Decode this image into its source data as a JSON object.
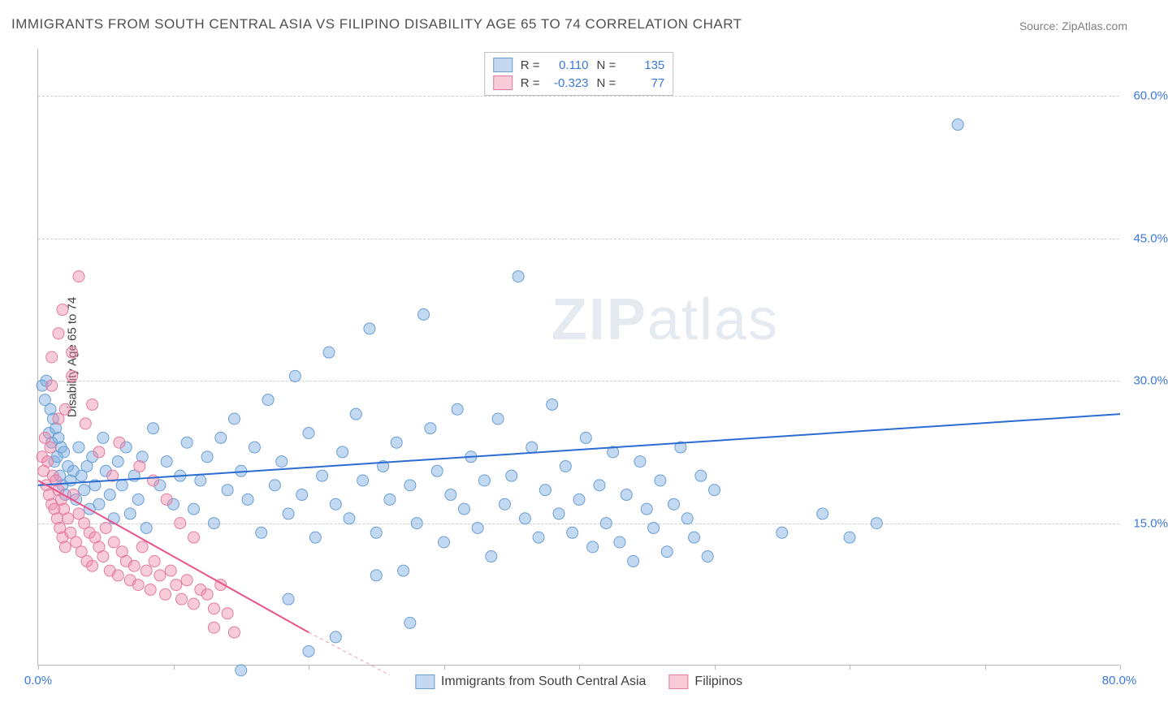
{
  "title": "IMMIGRANTS FROM SOUTH CENTRAL ASIA VS FILIPINO DISABILITY AGE 65 TO 74 CORRELATION CHART",
  "source": "Source: ZipAtlas.com",
  "watermark_prefix": "ZIP",
  "watermark_suffix": "atlas",
  "yaxis_title": "Disability Age 65 to 74",
  "chart": {
    "type": "scatter",
    "xlim": [
      0,
      80
    ],
    "ylim": [
      0,
      65
    ],
    "ytick_values": [
      15,
      30,
      45,
      60
    ],
    "ytick_labels": [
      "15.0%",
      "30.0%",
      "45.0%",
      "60.0%"
    ],
    "xtick_values": [
      0,
      10,
      20,
      30,
      40,
      50,
      60,
      70,
      80
    ],
    "x_origin_label": "0.0%",
    "x_max_label": "80.0%",
    "grid_color": "#d0d0d0",
    "axis_color": "#b8b8b8",
    "axis_label_color_blue": "#3b78d8",
    "background_color": "#ffffff",
    "series": [
      {
        "name": "Immigrants from South Central Asia",
        "marker_fill": "rgba(120,170,225,0.45)",
        "marker_stroke": "#6a9fd4",
        "marker_r": 7,
        "line_color": "#2b6cd1",
        "line_width": 2,
        "trend": {
          "x1": 0,
          "y1": 19.0,
          "x2": 80,
          "y2": 26.5
        },
        "R": "0.110",
        "N": "135",
        "points": [
          [
            0.3,
            29.5
          ],
          [
            0.5,
            28.0
          ],
          [
            0.6,
            30.0
          ],
          [
            0.8,
            24.5
          ],
          [
            0.9,
            27.0
          ],
          [
            1.0,
            23.5
          ],
          [
            1.1,
            26.0
          ],
          [
            1.2,
            21.5
          ],
          [
            1.3,
            25.0
          ],
          [
            1.4,
            22.0
          ],
          [
            1.5,
            24.0
          ],
          [
            1.6,
            20.0
          ],
          [
            1.7,
            23.0
          ],
          [
            1.8,
            19.0
          ],
          [
            1.9,
            22.5
          ],
          [
            2.0,
            18.0
          ],
          [
            2.2,
            21.0
          ],
          [
            2.4,
            19.5
          ],
          [
            2.6,
            20.5
          ],
          [
            2.8,
            17.5
          ],
          [
            3.0,
            23.0
          ],
          [
            3.2,
            20.0
          ],
          [
            3.4,
            18.5
          ],
          [
            3.6,
            21.0
          ],
          [
            3.8,
            16.5
          ],
          [
            4.0,
            22.0
          ],
          [
            4.2,
            19.0
          ],
          [
            4.5,
            17.0
          ],
          [
            4.8,
            24.0
          ],
          [
            5.0,
            20.5
          ],
          [
            5.3,
            18.0
          ],
          [
            5.6,
            15.5
          ],
          [
            5.9,
            21.5
          ],
          [
            6.2,
            19.0
          ],
          [
            6.5,
            23.0
          ],
          [
            6.8,
            16.0
          ],
          [
            7.1,
            20.0
          ],
          [
            7.4,
            17.5
          ],
          [
            7.7,
            22.0
          ],
          [
            8.0,
            14.5
          ],
          [
            8.5,
            25.0
          ],
          [
            9.0,
            19.0
          ],
          [
            9.5,
            21.5
          ],
          [
            10.0,
            17.0
          ],
          [
            10.5,
            20.0
          ],
          [
            11.0,
            23.5
          ],
          [
            11.5,
            16.5
          ],
          [
            12.0,
            19.5
          ],
          [
            12.5,
            22.0
          ],
          [
            13.0,
            15.0
          ],
          [
            13.5,
            24.0
          ],
          [
            14.0,
            18.5
          ],
          [
            14.5,
            26.0
          ],
          [
            15.0,
            20.5
          ],
          [
            15.5,
            17.5
          ],
          [
            16.0,
            23.0
          ],
          [
            16.5,
            14.0
          ],
          [
            17.0,
            28.0
          ],
          [
            17.5,
            19.0
          ],
          [
            18.0,
            21.5
          ],
          [
            18.5,
            16.0
          ],
          [
            19.0,
            30.5
          ],
          [
            19.5,
            18.0
          ],
          [
            20.0,
            24.5
          ],
          [
            20.5,
            13.5
          ],
          [
            21.0,
            20.0
          ],
          [
            21.5,
            33.0
          ],
          [
            22.0,
            17.0
          ],
          [
            22.5,
            22.5
          ],
          [
            23.0,
            15.5
          ],
          [
            23.5,
            26.5
          ],
          [
            24.0,
            19.5
          ],
          [
            24.5,
            35.5
          ],
          [
            25.0,
            14.0
          ],
          [
            25.5,
            21.0
          ],
          [
            26.0,
            17.5
          ],
          [
            26.5,
            23.5
          ],
          [
            27.0,
            10.0
          ],
          [
            27.5,
            19.0
          ],
          [
            28.0,
            15.0
          ],
          [
            28.5,
            37.0
          ],
          [
            29.0,
            25.0
          ],
          [
            29.5,
            20.5
          ],
          [
            30.0,
            13.0
          ],
          [
            30.5,
            18.0
          ],
          [
            31.0,
            27.0
          ],
          [
            31.5,
            16.5
          ],
          [
            32.0,
            22.0
          ],
          [
            32.5,
            14.5
          ],
          [
            33.0,
            19.5
          ],
          [
            33.5,
            11.5
          ],
          [
            34.0,
            26.0
          ],
          [
            34.5,
            17.0
          ],
          [
            35.0,
            20.0
          ],
          [
            35.5,
            41.0
          ],
          [
            36.0,
            15.5
          ],
          [
            36.5,
            23.0
          ],
          [
            37.0,
            13.5
          ],
          [
            37.5,
            18.5
          ],
          [
            38.0,
            27.5
          ],
          [
            38.5,
            16.0
          ],
          [
            39.0,
            21.0
          ],
          [
            39.5,
            14.0
          ],
          [
            40.0,
            17.5
          ],
          [
            40.5,
            24.0
          ],
          [
            41.0,
            12.5
          ],
          [
            41.5,
            19.0
          ],
          [
            42.0,
            15.0
          ],
          [
            42.5,
            22.5
          ],
          [
            43.0,
            13.0
          ],
          [
            43.5,
            18.0
          ],
          [
            44.0,
            11.0
          ],
          [
            44.5,
            21.5
          ],
          [
            45.0,
            16.5
          ],
          [
            45.5,
            14.5
          ],
          [
            46.0,
            19.5
          ],
          [
            46.5,
            12.0
          ],
          [
            47.0,
            17.0
          ],
          [
            47.5,
            23.0
          ],
          [
            48.0,
            15.5
          ],
          [
            48.5,
            13.5
          ],
          [
            49.0,
            20.0
          ],
          [
            49.5,
            11.5
          ],
          [
            50.0,
            18.5
          ],
          [
            55.0,
            14.0
          ],
          [
            58.0,
            16.0
          ],
          [
            60.0,
            13.5
          ],
          [
            62.0,
            15.0
          ],
          [
            68.0,
            57.0
          ],
          [
            22.0,
            3.0
          ],
          [
            25.0,
            9.5
          ],
          [
            27.5,
            4.5
          ],
          [
            18.5,
            7.0
          ],
          [
            20.0,
            1.5
          ],
          [
            15.0,
            -0.5
          ]
        ]
      },
      {
        "name": "Filipinos",
        "marker_fill": "rgba(240,140,170,0.45)",
        "marker_stroke": "#e37ba0",
        "marker_r": 7,
        "line_color": "#e8548b",
        "line_width": 2,
        "trend": {
          "x1": 0,
          "y1": 19.5,
          "x2": 20,
          "y2": 3.5
        },
        "trend_dash_ext": {
          "x1": 20,
          "y1": 3.5,
          "x2": 26,
          "y2": -1.0
        },
        "R": "-0.323",
        "N": "77",
        "points": [
          [
            0.3,
            22.0
          ],
          [
            0.4,
            20.5
          ],
          [
            0.5,
            24.0
          ],
          [
            0.6,
            19.0
          ],
          [
            0.7,
            21.5
          ],
          [
            0.8,
            18.0
          ],
          [
            0.9,
            23.0
          ],
          [
            1.0,
            17.0
          ],
          [
            1.1,
            20.0
          ],
          [
            1.2,
            16.5
          ],
          [
            1.3,
            19.5
          ],
          [
            1.4,
            15.5
          ],
          [
            1.5,
            18.5
          ],
          [
            1.6,
            14.5
          ],
          [
            1.7,
            17.5
          ],
          [
            1.8,
            13.5
          ],
          [
            1.9,
            16.5
          ],
          [
            2.0,
            12.5
          ],
          [
            2.2,
            15.5
          ],
          [
            2.4,
            14.0
          ],
          [
            2.6,
            18.0
          ],
          [
            2.8,
            13.0
          ],
          [
            3.0,
            16.0
          ],
          [
            3.2,
            12.0
          ],
          [
            3.4,
            15.0
          ],
          [
            3.6,
            11.0
          ],
          [
            3.8,
            14.0
          ],
          [
            4.0,
            10.5
          ],
          [
            4.2,
            13.5
          ],
          [
            4.5,
            12.5
          ],
          [
            4.8,
            11.5
          ],
          [
            5.0,
            14.5
          ],
          [
            5.3,
            10.0
          ],
          [
            5.6,
            13.0
          ],
          [
            5.9,
            9.5
          ],
          [
            6.2,
            12.0
          ],
          [
            6.5,
            11.0
          ],
          [
            6.8,
            9.0
          ],
          [
            7.1,
            10.5
          ],
          [
            7.4,
            8.5
          ],
          [
            7.7,
            12.5
          ],
          [
            8.0,
            10.0
          ],
          [
            8.3,
            8.0
          ],
          [
            8.6,
            11.0
          ],
          [
            9.0,
            9.5
          ],
          [
            9.4,
            7.5
          ],
          [
            9.8,
            10.0
          ],
          [
            10.2,
            8.5
          ],
          [
            10.6,
            7.0
          ],
          [
            11.0,
            9.0
          ],
          [
            11.5,
            6.5
          ],
          [
            12.0,
            8.0
          ],
          [
            12.5,
            7.5
          ],
          [
            13.0,
            6.0
          ],
          [
            13.5,
            8.5
          ],
          [
            14.0,
            5.5
          ],
          [
            2.0,
            27.0
          ],
          [
            1.0,
            29.5
          ],
          [
            1.5,
            26.0
          ],
          [
            2.5,
            30.5
          ],
          [
            3.5,
            25.5
          ],
          [
            4.0,
            27.5
          ],
          [
            1.0,
            32.5
          ],
          [
            1.5,
            35.0
          ],
          [
            3.0,
            41.0
          ],
          [
            1.8,
            37.5
          ],
          [
            2.5,
            33.0
          ],
          [
            4.5,
            22.5
          ],
          [
            5.5,
            20.0
          ],
          [
            6.0,
            23.5
          ],
          [
            7.5,
            21.0
          ],
          [
            8.5,
            19.5
          ],
          [
            9.5,
            17.5
          ],
          [
            10.5,
            15.0
          ],
          [
            11.5,
            13.5
          ],
          [
            13.0,
            4.0
          ],
          [
            14.5,
            3.5
          ]
        ]
      }
    ]
  },
  "legend_top": {
    "rows": [
      {
        "swatch_fill": "rgba(120,170,225,0.45)",
        "swatch_border": "#6a9fd4",
        "r_label": "R =",
        "r_val": "0.110",
        "n_label": "N =",
        "n_val": "135",
        "val_color": "#3b78d8"
      },
      {
        "swatch_fill": "rgba(240,140,170,0.45)",
        "swatch_border": "#e37ba0",
        "r_label": "R =",
        "r_val": "-0.323",
        "n_label": "N =",
        "n_val": "77",
        "val_color": "#3b78d8"
      }
    ]
  },
  "legend_bottom": [
    {
      "swatch_fill": "rgba(120,170,225,0.45)",
      "swatch_border": "#6a9fd4",
      "label": "Immigrants from South Central Asia"
    },
    {
      "swatch_fill": "rgba(240,140,170,0.45)",
      "swatch_border": "#e37ba0",
      "label": "Filipinos"
    }
  ]
}
